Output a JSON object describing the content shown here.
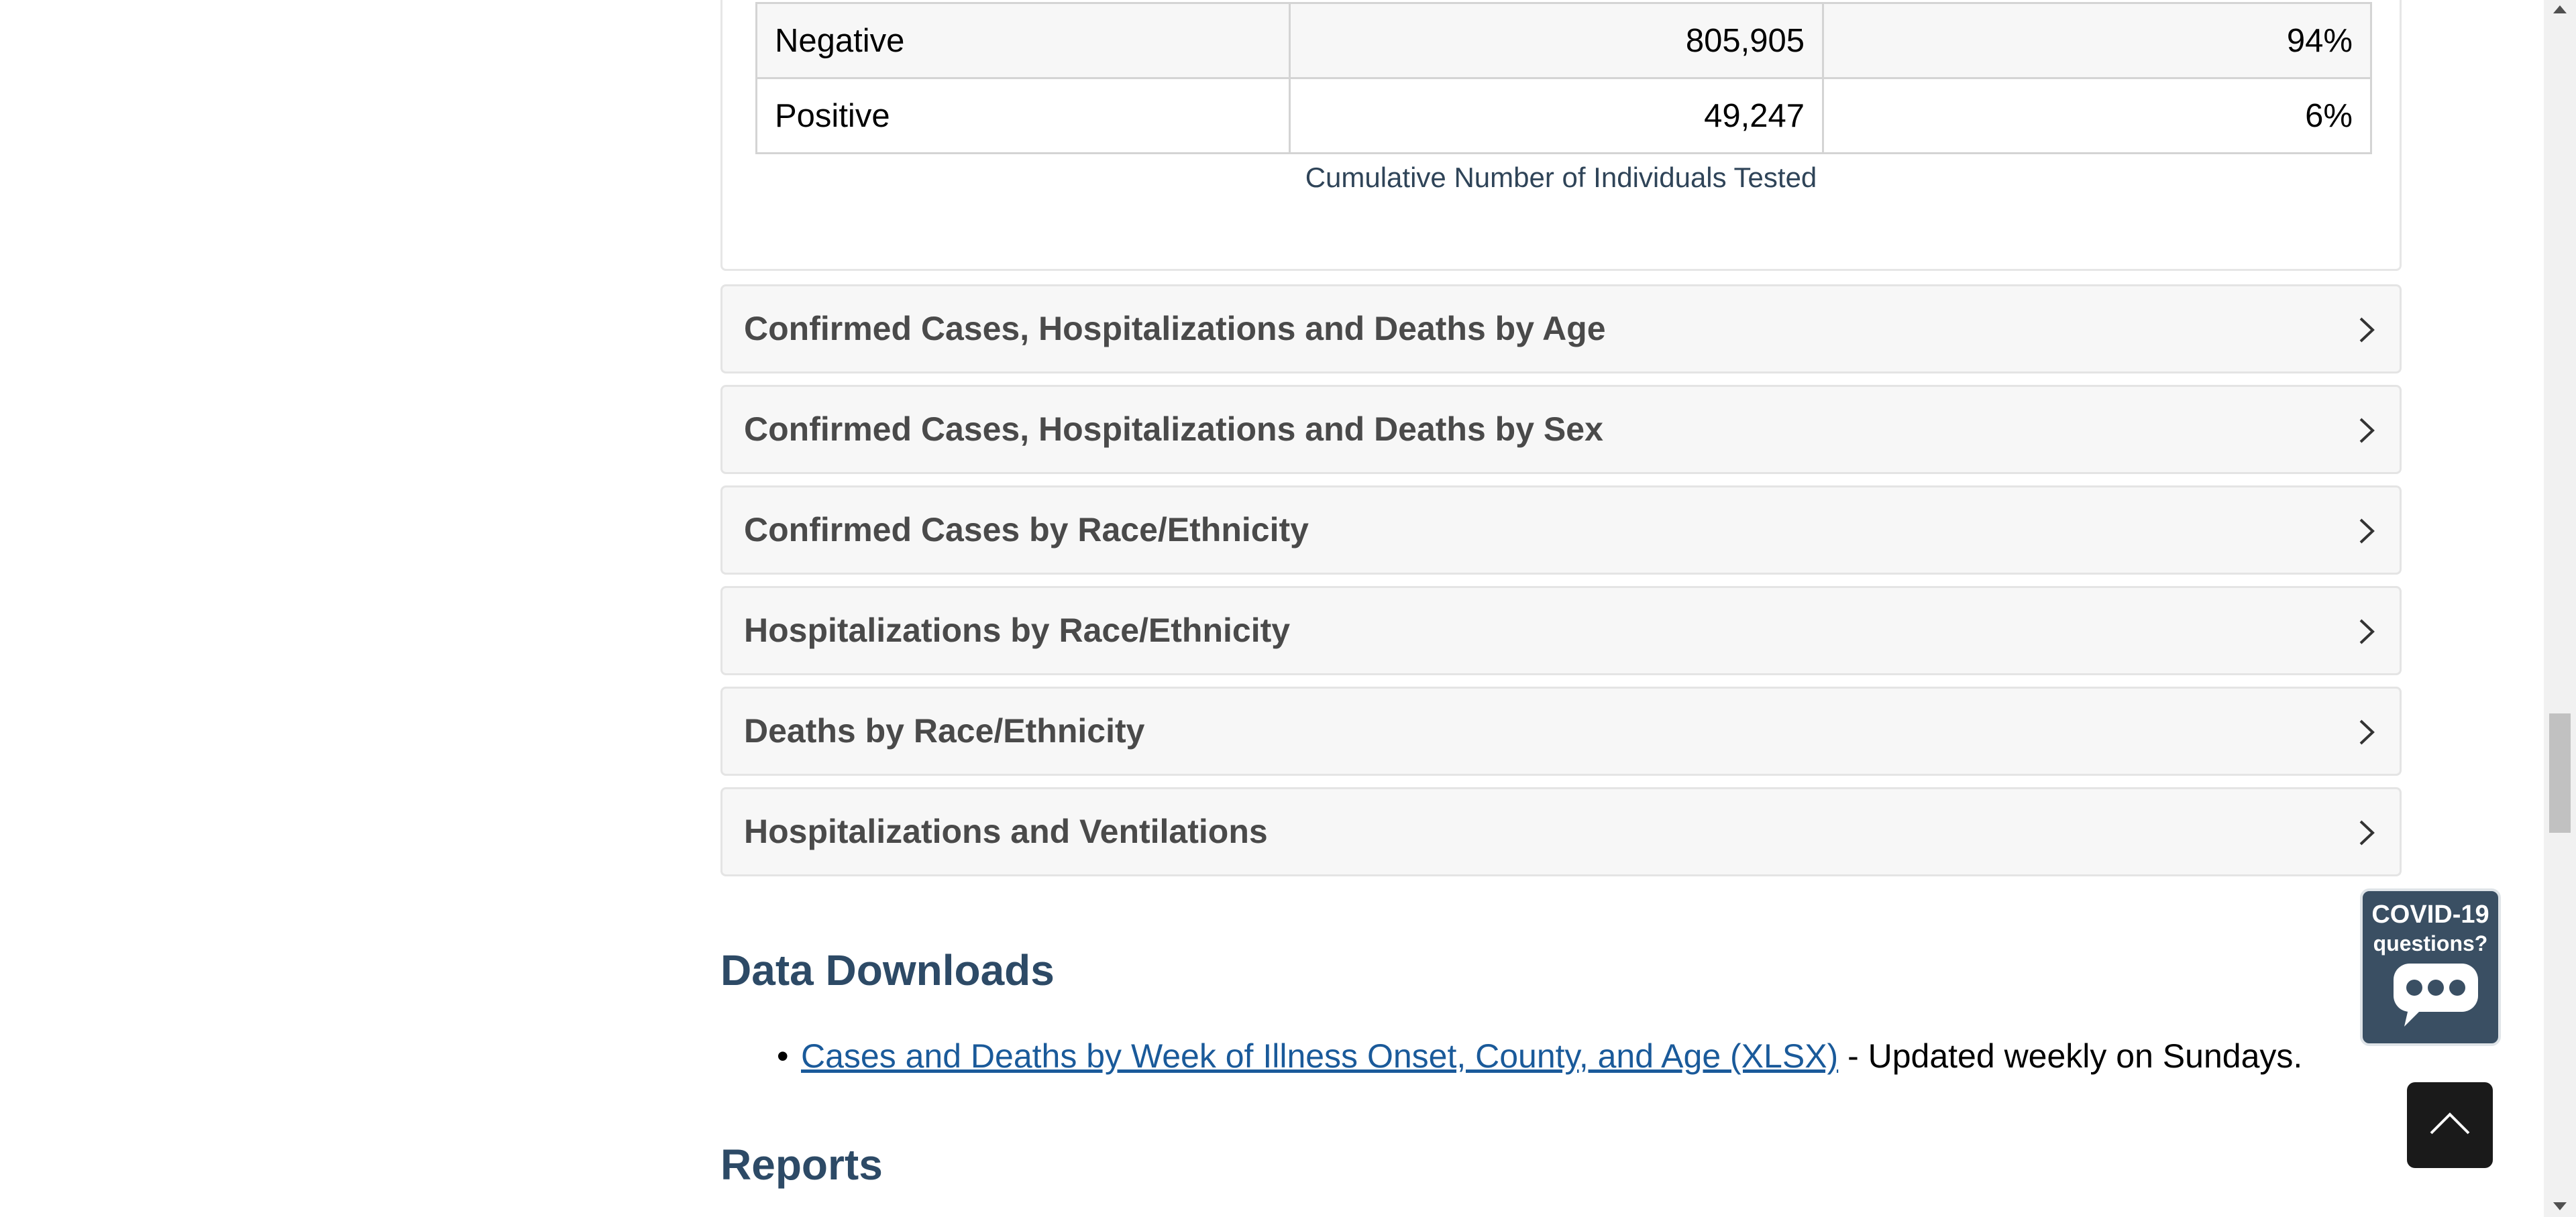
{
  "testing_table": {
    "rows": [
      {
        "label": "Negative",
        "count": "805,905",
        "percent": "94%"
      },
      {
        "label": "Positive",
        "count": "49,247",
        "percent": "6%"
      }
    ],
    "caption": "Cumulative Number of Individuals Tested"
  },
  "accordion": [
    {
      "label": "Confirmed Cases, Hospitalizations and Deaths by Age"
    },
    {
      "label": "Confirmed Cases, Hospitalizations and Deaths by Sex"
    },
    {
      "label": "Confirmed Cases by Race/Ethnicity"
    },
    {
      "label": "Hospitalizations by Race/Ethnicity"
    },
    {
      "label": "Deaths by Race/Ethnicity"
    },
    {
      "label": "Hospitalizations and Ventilations"
    }
  ],
  "data_downloads": {
    "heading": "Data Downloads",
    "items": [
      {
        "bullet": "•",
        "link_text": "Cases and Deaths by Week of Illness Onset, County, and Age (XLSX)",
        "suffix": " - Updated weekly on Sundays."
      }
    ]
  },
  "reports": {
    "heading": "Reports"
  },
  "chat_widget": {
    "line1": "COVID-19",
    "line2": "questions?",
    "icon": "speech-bubble-icon"
  },
  "back_to_top": {
    "icon": "chevron-up-icon"
  }
}
